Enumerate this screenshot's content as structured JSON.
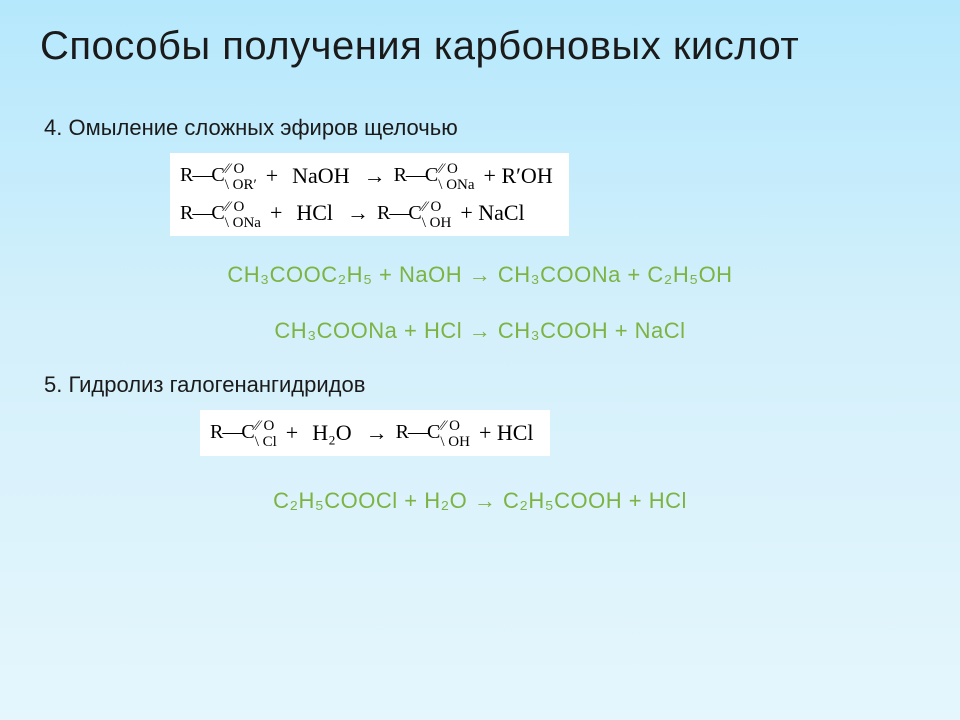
{
  "title": "Способы получения карбоновых кислот",
  "section4": {
    "heading": "4. Омыление сложных эфиров щелочью",
    "struct": {
      "line1": {
        "left_r": "R—C",
        "left_up": "⁄⁄ O",
        "left_dn": "\\ OR′",
        "plus": "+",
        "reagent": "NaOH",
        "arrow": "→",
        "right_r": "R—C",
        "right_up": "⁄⁄ O",
        "right_dn": "\\ ONa",
        "tail": "+  R′OH"
      },
      "line2": {
        "left_r": "R—C",
        "left_up": "⁄⁄ O",
        "left_dn": "\\ ONa",
        "plus": "+",
        "reagent": "HCl",
        "arrow": "→",
        "right_r": "R—C",
        "right_up": "⁄⁄ O",
        "right_dn": "\\ OH",
        "tail": "+  NaCl"
      }
    },
    "eq1": "CH₃COOC₂H₅ + NaOH → CH₃COONa + C₂H₅OH",
    "eq2": "CH₃COONa + HCl → CH₃COOH + NaCl"
  },
  "section5": {
    "heading": "5. Гидролиз галогенангидридов",
    "struct": {
      "line1": {
        "left_r": "R—C",
        "left_up": "⁄⁄ O",
        "left_dn": "\\ Cl",
        "plus": "+",
        "reagent": "H₂O",
        "arrow": "→",
        "right_r": "R—C",
        "right_up": "⁄⁄ O",
        "right_dn": "\\ OH",
        "tail": "+  HCl"
      }
    },
    "eq1": "C₂H₅COOCl + H₂O → C₂H₅COOH + HCl"
  },
  "colors": {
    "title": "#1a1a1a",
    "heading": "#1a1a1a",
    "equation": "#7cb342",
    "box_bg": "#ffffff",
    "bg_top": "#b5e8fc",
    "bg_bottom": "#e5f6fd"
  }
}
